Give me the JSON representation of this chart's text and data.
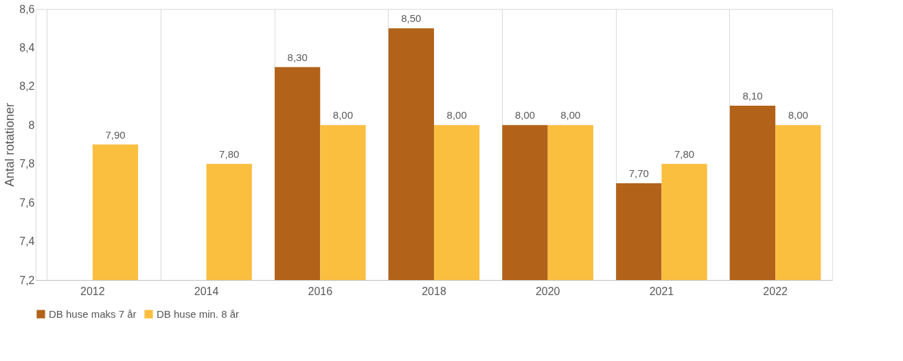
{
  "chart_data": {
    "type": "bar",
    "ylabel": "Antal rotationer",
    "categories": [
      "2012",
      "2014",
      "2016",
      "2018",
      "2020",
      "2021",
      "2022"
    ],
    "series": [
      {
        "name": "DB huse maks 7 år",
        "color": "#b26319",
        "values": [
          null,
          null,
          8.3,
          8.5,
          8.0,
          7.7,
          8.1
        ],
        "value_labels": [
          null,
          null,
          "8,30",
          "8,50",
          "8,00",
          "7,70",
          "8,10"
        ]
      },
      {
        "name": "DB huse min. 8 år",
        "color": "#fbbf40",
        "values": [
          7.9,
          7.8,
          8.0,
          8.0,
          8.0,
          7.8,
          8.0
        ],
        "value_labels": [
          "7,90",
          "7,80",
          "8,00",
          "8,00",
          "8,00",
          "7,80",
          "8,00"
        ]
      }
    ],
    "ylim": [
      7.2,
      8.6
    ],
    "yticks": [
      {
        "value": 7.2,
        "label": "7,2"
      },
      {
        "value": 7.4,
        "label": "7,4"
      },
      {
        "value": 7.6,
        "label": "7,6"
      },
      {
        "value": 7.8,
        "label": "7,8"
      },
      {
        "value": 8,
        "label": "8"
      },
      {
        "value": 8.2,
        "label": "8,2"
      },
      {
        "value": 8.4,
        "label": "8,4"
      },
      {
        "value": 8.6,
        "label": "8,6"
      }
    ],
    "grid": "x",
    "legend": "bottom"
  }
}
